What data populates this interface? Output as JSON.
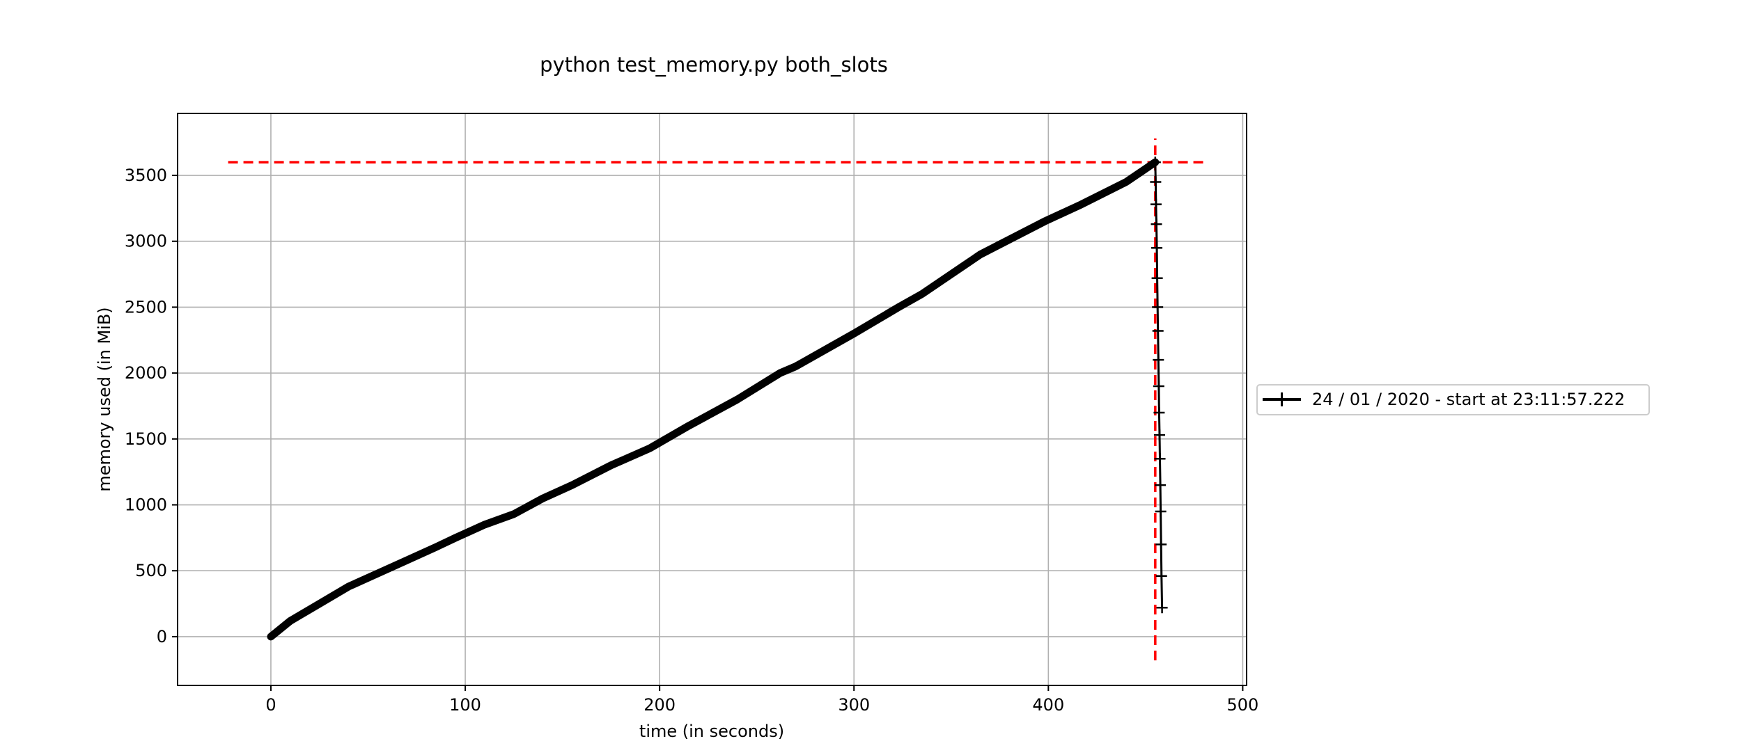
{
  "chart_data": {
    "type": "line",
    "title": "python test_memory.py both_slots",
    "xlabel": "time (in seconds)",
    "ylabel": "memory used (in MiB)",
    "xlim": [
      -48,
      502
    ],
    "ylim": [
      -370,
      3970
    ],
    "xticks": [
      0,
      100,
      200,
      300,
      400,
      500
    ],
    "yticks": [
      0,
      500,
      1000,
      1500,
      2000,
      2500,
      3000,
      3500
    ],
    "grid": true,
    "legend_position": "outside-right",
    "series": [
      {
        "name": "24 / 01 / 2020 - start at 23:11:57.222",
        "color": "#000000",
        "marker": "+",
        "x": [
          0,
          10,
          25,
          40,
          55,
          70,
          85,
          95,
          110,
          125,
          140,
          155,
          175,
          195,
          215,
          240,
          262,
          270,
          300,
          323,
          335,
          365,
          398,
          417,
          440,
          455,
          455.2,
          455.4,
          455.6,
          455.8,
          456.0,
          456.2,
          456.4,
          456.6,
          456.8,
          457.0,
          457.2,
          457.4,
          457.6,
          457.8,
          458.0,
          458.2,
          458.5
        ],
        "y": [
          0,
          120,
          250,
          380,
          480,
          580,
          680,
          750,
          850,
          930,
          1050,
          1150,
          1300,
          1430,
          1600,
          1800,
          2000,
          2050,
          2300,
          2500,
          2600,
          2900,
          3150,
          3280,
          3450,
          3600,
          3450,
          3280,
          3130,
          2950,
          2720,
          2500,
          2320,
          2100,
          1900,
          1700,
          1530,
          1350,
          1150,
          950,
          700,
          460,
          220
        ]
      }
    ],
    "reference_lines": [
      {
        "orientation": "horizontal",
        "value": 3600,
        "color": "#ff0000",
        "style": "dashed",
        "from": -22,
        "to": 480
      },
      {
        "orientation": "vertical",
        "value": 455,
        "color": "#ff0000",
        "style": "dashed",
        "from": -180,
        "to": 3780
      }
    ]
  }
}
